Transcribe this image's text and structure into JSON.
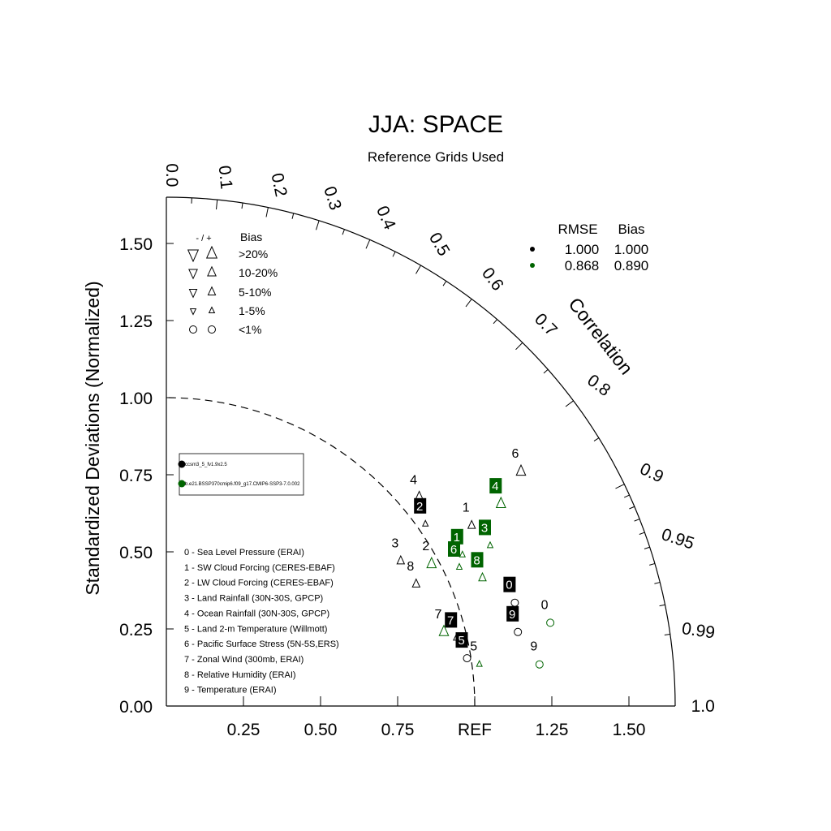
{
  "chart_data": {
    "type": "scatter",
    "title": "JJA: SPACE",
    "subtitle": "Reference Grids Used",
    "ylabel": "Standardized Deviations (Normalized)",
    "correlation_label": "Correlation",
    "ref_label": "REF",
    "std_range": [
      0,
      1.65
    ],
    "std_ticks": [
      "0.00",
      "0.25",
      "0.50",
      "0.75",
      "1.00",
      "1.25",
      "1.50"
    ],
    "x_ticks": [
      "0.25",
      "0.50",
      "0.75",
      "1.25",
      "1.50"
    ],
    "correlation_ticks": [
      "0.0",
      "0.1",
      "0.2",
      "0.3",
      "0.4",
      "0.5",
      "0.6",
      "0.7",
      "0.8",
      "0.9",
      "0.95",
      "0.99",
      "1.0"
    ],
    "bias_legend": {
      "header_sign": "- / +",
      "header_bias": "Bias",
      "levels": [
        ">20%",
        "10-20%",
        "5-10%",
        "1-5%",
        "<1%"
      ]
    },
    "stats_legend": {
      "headers": [
        "RMSE",
        "Bias"
      ],
      "rows": [
        {
          "rmse": "1.000",
          "bias": "1.000",
          "color": "#000000"
        },
        {
          "rmse": "0.868",
          "bias": "0.890",
          "color": "#006400"
        }
      ]
    },
    "series": [
      {
        "name": "ccsm3_5_fv1.9x2.5",
        "color": "#000000"
      },
      {
        "name": "b.e21.BSSP370cmip6.f09_g17.CMIP6-SSP3-7.0.002",
        "color": "#006400"
      }
    ],
    "variables": [
      "0 - Sea Level Pressure (ERAI)",
      "1 - SW Cloud Forcing (CERES-EBAF)",
      "2 - LW Cloud Forcing (CERES-EBAF)",
      "3 - Land Rainfall (30N-30S, GPCP)",
      "4 - Ocean Rainfall (30N-30S, GPCP)",
      "5 - Land 2-m Temperature (Willmott)",
      "6 - Pacific Surface Stress (5N-5S,ERS)",
      "7 - Zonal Wind (300mb, ERAI)",
      "8 - Relative Humidity (ERAI)",
      "9 - Temperature (ERAI)"
    ],
    "points": [
      {
        "series": 0,
        "label": "0",
        "x": 1.13,
        "y": 0.335,
        "marker": "circle",
        "size": 1,
        "boxed": true
      },
      {
        "series": 0,
        "label": "1",
        "x": 0.99,
        "y": 0.585,
        "marker": "up",
        "size": 2,
        "boxed": false
      },
      {
        "series": 0,
        "label": "2",
        "x": 0.84,
        "y": 0.59,
        "marker": "up",
        "size": 1,
        "boxed": true
      },
      {
        "series": 0,
        "label": "3",
        "x": 0.76,
        "y": 0.47,
        "marker": "up",
        "size": 2,
        "boxed": false
      },
      {
        "series": 0,
        "label": "4",
        "x": 0.82,
        "y": 0.675,
        "marker": "up",
        "size": 3,
        "boxed": false
      },
      {
        "series": 0,
        "label": "5",
        "x": 0.975,
        "y": 0.155,
        "marker": "circle",
        "size": 1,
        "boxed": true
      },
      {
        "series": 0,
        "label": "6",
        "x": 1.15,
        "y": 0.76,
        "marker": "up",
        "size": 3,
        "boxed": false
      },
      {
        "series": 0,
        "label": "7",
        "x": 0.94,
        "y": 0.22,
        "marker": "up",
        "size": 1,
        "boxed": true
      },
      {
        "series": 0,
        "label": "8",
        "x": 0.81,
        "y": 0.395,
        "marker": "up",
        "size": 2,
        "boxed": false
      },
      {
        "series": 0,
        "label": "9",
        "x": 1.14,
        "y": 0.24,
        "marker": "circle",
        "size": 1,
        "boxed": true
      },
      {
        "series": 1,
        "label": "0",
        "x": 1.245,
        "y": 0.27,
        "marker": "circle",
        "size": 1,
        "boxed": false
      },
      {
        "series": 1,
        "label": "1",
        "x": 0.96,
        "y": 0.49,
        "marker": "up",
        "size": 1,
        "boxed": true
      },
      {
        "series": 1,
        "label": "2",
        "x": 0.86,
        "y": 0.46,
        "marker": "up",
        "size": 3,
        "boxed": false
      },
      {
        "series": 1,
        "label": "3",
        "x": 1.05,
        "y": 0.52,
        "marker": "up",
        "size": 1,
        "boxed": true
      },
      {
        "series": 1,
        "label": "4",
        "x": 1.085,
        "y": 0.655,
        "marker": "up",
        "size": 3,
        "boxed": true
      },
      {
        "series": 1,
        "label": "5",
        "x": 1.015,
        "y": 0.135,
        "marker": "up",
        "size": 1,
        "boxed": false
      },
      {
        "series": 1,
        "label": "6",
        "x": 0.95,
        "y": 0.45,
        "marker": "up",
        "size": 1,
        "boxed": true
      },
      {
        "series": 1,
        "label": "7",
        "x": 0.9,
        "y": 0.24,
        "marker": "up",
        "size": 3,
        "boxed": false
      },
      {
        "series": 1,
        "label": "8",
        "x": 1.025,
        "y": 0.415,
        "marker": "up",
        "size": 2,
        "boxed": true
      },
      {
        "series": 1,
        "label": "9",
        "x": 1.21,
        "y": 0.135,
        "marker": "circle",
        "size": 1,
        "boxed": false
      }
    ]
  }
}
